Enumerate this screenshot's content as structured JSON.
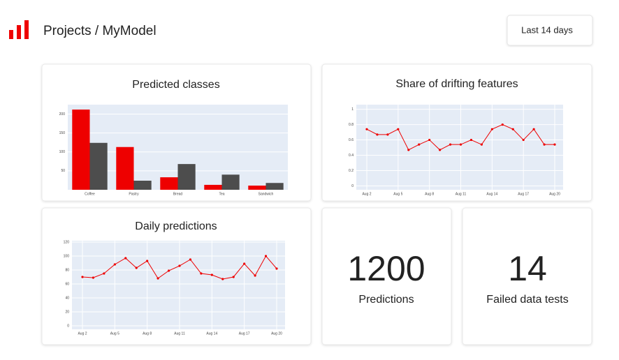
{
  "header": {
    "title": "Projects / MyModel",
    "range_button": "Last 14 days"
  },
  "chart_data": [
    {
      "type": "bar",
      "title": "Predicted classes",
      "categories": [
        "Coffee",
        "Pastry",
        "Bread",
        "Tea",
        "Sandwich"
      ],
      "series": [
        {
          "color": "#ee0000",
          "values": [
            212,
            113,
            33,
            13,
            11
          ]
        },
        {
          "color": "#4d4d4d",
          "values": [
            124,
            24,
            68,
            40,
            18
          ]
        }
      ],
      "ylim": [
        0,
        225
      ],
      "yticks": [
        50,
        100,
        150,
        200
      ],
      "grid": true
    },
    {
      "type": "line",
      "title": "Share of drifting features",
      "x": [
        "Aug 2",
        "Aug 3",
        "Aug 4",
        "Aug 5",
        "Aug 6",
        "Aug 7",
        "Aug 8",
        "Aug 9",
        "Aug 10",
        "Aug 11",
        "Aug 12",
        "Aug 13",
        "Aug 14",
        "Aug 15",
        "Aug 16",
        "Aug 17",
        "Aug 18",
        "Aug 19",
        "Aug 20"
      ],
      "xticks": [
        "Aug 2",
        "Aug 5",
        "Aug 8",
        "Aug 11",
        "Aug 14",
        "Aug 17",
        "Aug 20"
      ],
      "series": [
        {
          "color": "#ee0000",
          "values": [
            0.74,
            0.67,
            0.67,
            0.74,
            0.47,
            0.54,
            0.6,
            0.47,
            0.54,
            0.54,
            0.6,
            0.54,
            0.74,
            0.8,
            0.74,
            0.6,
            0.74,
            0.54,
            0.54
          ]
        }
      ],
      "ylim": [
        -0.05,
        1.06
      ],
      "yticks": [
        0,
        0.2,
        0.4,
        0.6,
        0.8,
        1
      ],
      "grid": true
    },
    {
      "type": "line",
      "title": "Daily predictions",
      "x": [
        "Aug 2",
        "Aug 3",
        "Aug 4",
        "Aug 5",
        "Aug 6",
        "Aug 7",
        "Aug 8",
        "Aug 9",
        "Aug 10",
        "Aug 11",
        "Aug 12",
        "Aug 13",
        "Aug 14",
        "Aug 15",
        "Aug 16",
        "Aug 17",
        "Aug 18",
        "Aug 19",
        "Aug 20"
      ],
      "xticks": [
        "Aug 2",
        "Aug 5",
        "Aug 8",
        "Aug 11",
        "Aug 14",
        "Aug 17",
        "Aug 20"
      ],
      "series": [
        {
          "color": "#ee0000",
          "values": [
            70,
            69,
            75,
            88,
            97,
            83,
            93,
            68,
            79,
            86,
            95,
            75,
            73,
            67,
            70,
            89,
            72,
            100,
            82
          ]
        }
      ],
      "ylim": [
        -5,
        122
      ],
      "yticks": [
        0,
        20,
        40,
        60,
        80,
        100,
        120
      ],
      "grid": true
    }
  ],
  "kpis": [
    {
      "value": 1200,
      "label": "Predictions"
    },
    {
      "value": 14,
      "label": "Failed data tests"
    }
  ]
}
